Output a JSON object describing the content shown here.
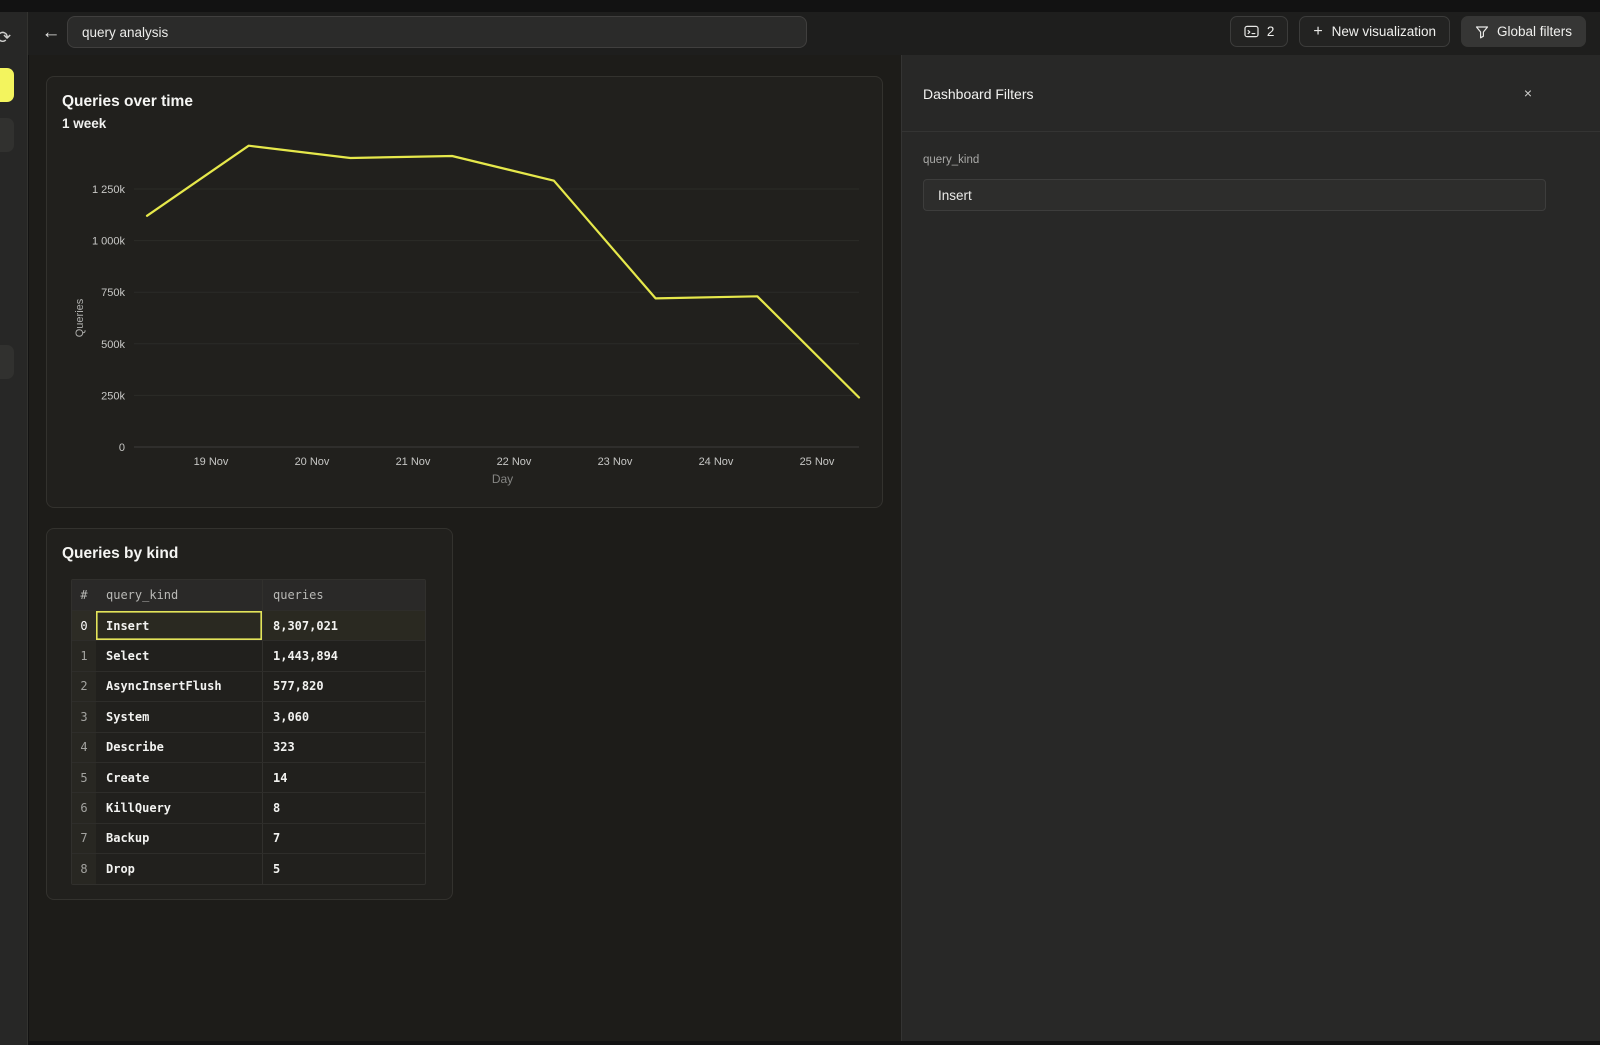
{
  "topbar": {
    "title_value": "query analysis",
    "console_count": "2",
    "new_visualization_label": "New visualization",
    "global_filters_label": "Global filters",
    "back_glyph": "←",
    "plus_glyph": "+",
    "refresh_glyph": "⟳"
  },
  "chart_card": {
    "title": "Queries over time",
    "subtitle": "1 week"
  },
  "chart_data": {
    "type": "line",
    "title": "Queries over time",
    "subtitle": "1 week",
    "xlabel": "Day",
    "ylabel": "Queries",
    "x_ticks": [
      "19 Nov",
      "20 Nov",
      "21 Nov",
      "22 Nov",
      "23 Nov",
      "24 Nov",
      "25 Nov"
    ],
    "y_ticks": [
      "0",
      "250k",
      "500k",
      "750k",
      "1 000k",
      "1 250k"
    ],
    "ylim": [
      0,
      1500000
    ],
    "grid": true,
    "legend": "none",
    "line_color": "#e6e84b",
    "x": [
      "18 Nov",
      "19 Nov",
      "20 Nov",
      "21 Nov",
      "22 Nov",
      "23 Nov",
      "24 Nov",
      "25 Nov"
    ],
    "values": [
      1120000,
      1460000,
      1400000,
      1410000,
      1290000,
      720000,
      730000,
      240000
    ]
  },
  "table_card": {
    "title": "Queries by kind",
    "columns": [
      "#",
      "query_kind",
      "queries"
    ],
    "selected_row": 0,
    "rows": [
      {
        "index": "0",
        "query_kind": "Insert",
        "queries": "8,307,021"
      },
      {
        "index": "1",
        "query_kind": "Select",
        "queries": "1,443,894"
      },
      {
        "index": "2",
        "query_kind": "AsyncInsertFlush",
        "queries": "577,820"
      },
      {
        "index": "3",
        "query_kind": "System",
        "queries": "3,060"
      },
      {
        "index": "4",
        "query_kind": "Describe",
        "queries": "323"
      },
      {
        "index": "5",
        "query_kind": "Create",
        "queries": "14"
      },
      {
        "index": "6",
        "query_kind": "KillQuery",
        "queries": "8"
      },
      {
        "index": "7",
        "query_kind": "Backup",
        "queries": "7"
      },
      {
        "index": "8",
        "query_kind": "Drop",
        "queries": "5"
      }
    ]
  },
  "filters_panel": {
    "title": "Dashboard Filters",
    "close_glyph": "×",
    "fields": [
      {
        "label": "query_kind",
        "value": "Insert"
      }
    ]
  }
}
